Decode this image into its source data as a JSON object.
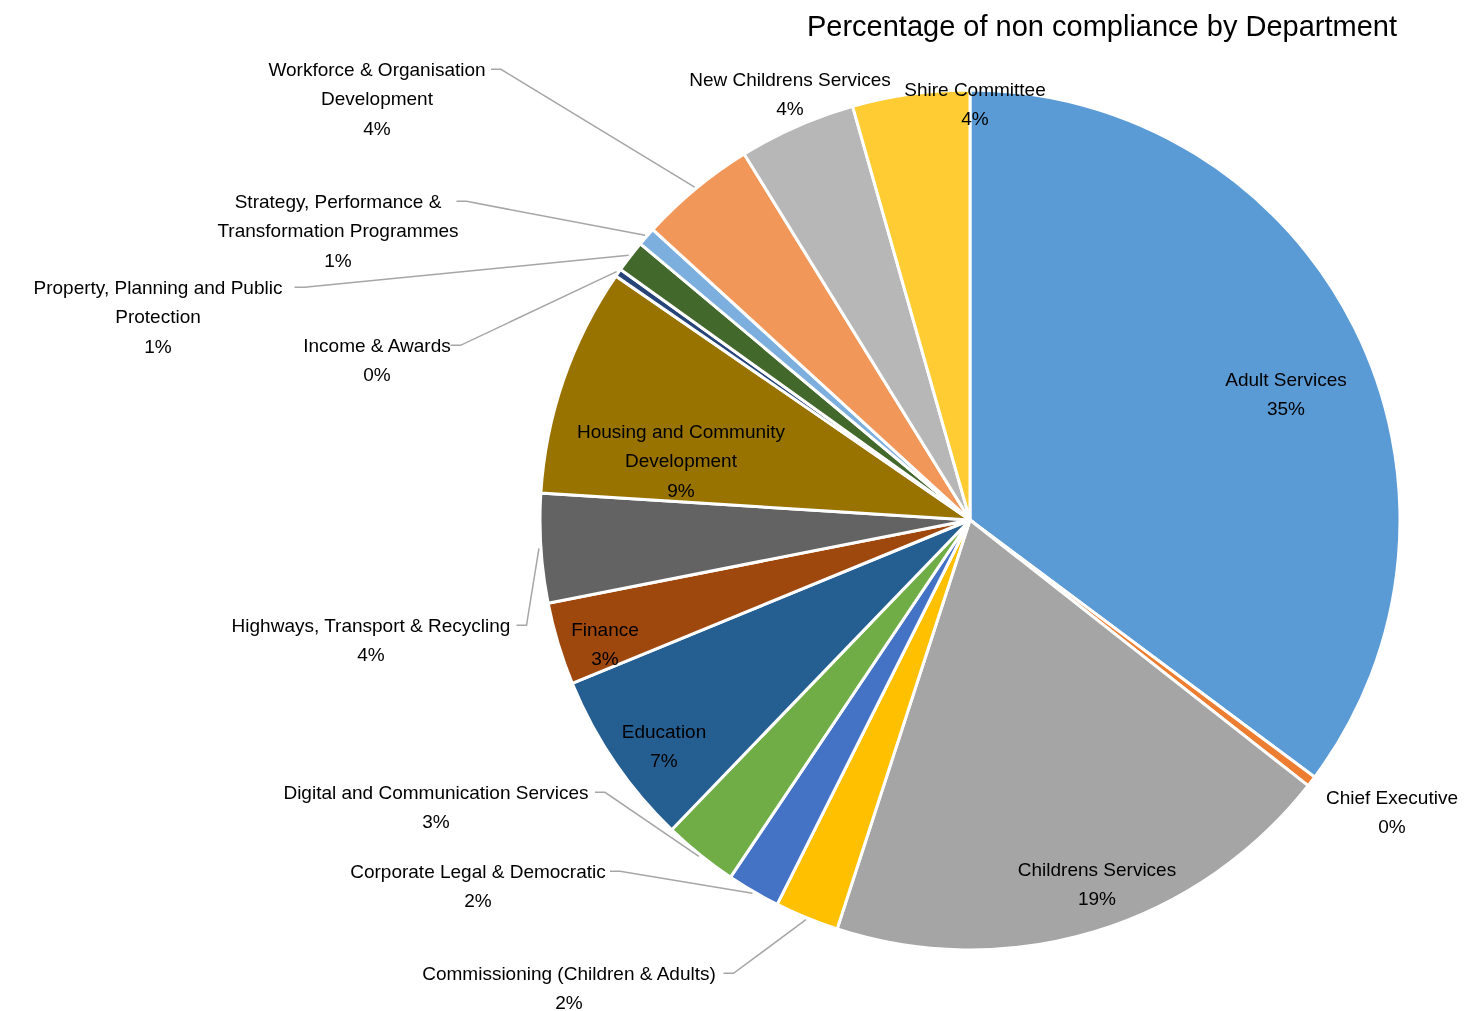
{
  "chart_data": {
    "type": "pie",
    "title": "Percentage of non compliance by Department",
    "categories": [
      "Adult Services",
      "Chief Executive",
      "Childrens Services",
      "Commissioning (Children & Adults)",
      "Corporate Legal & Democratic",
      "Digital and Communication Services",
      "Education",
      "Finance",
      "Highways, Transport & Recycling",
      "Housing and Community Development",
      "Income & Awards",
      "Property, Planning and Public Protection",
      "Strategy, Performance & Transformation Programmes",
      "Workforce & Organisation Development",
      "New Childrens Services",
      "Shire Committee"
    ],
    "values": [
      35.2,
      0.4,
      19.4,
      2.4,
      2.0,
      2.8,
      6.6,
      3.1,
      4.1,
      8.6,
      0.3,
      1.2,
      0.7,
      4.4,
      4.4,
      4.4
    ],
    "value_labels": [
      "35%",
      "0%",
      "19%",
      "2%",
      "2%",
      "3%",
      "7%",
      "3%",
      "4%",
      "9%",
      "0%",
      "1%",
      "1%",
      "4%",
      "4%",
      "4%"
    ],
    "colors": [
      "#5b9bd5",
      "#ed7d31",
      "#a5a5a5",
      "#ffc000",
      "#4472c4",
      "#70ad47",
      "#255e91",
      "#9e480e",
      "#636363",
      "#997300",
      "#264478",
      "#43682b",
      "#7cafdd",
      "#f1975a",
      "#b7b7b7",
      "#ffcd33"
    ]
  }
}
